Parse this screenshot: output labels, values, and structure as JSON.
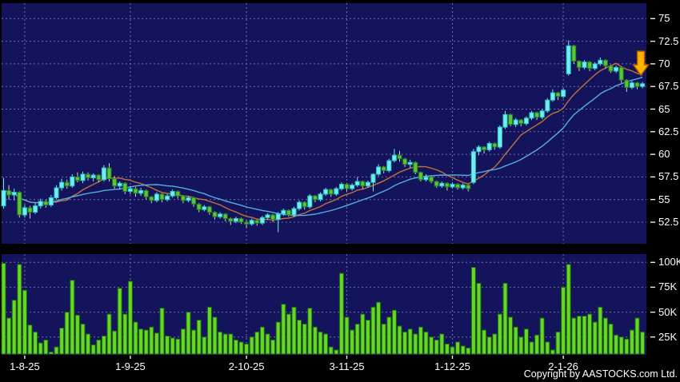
{
  "copyright": "Copyright by AASTOCKS.com Ltd.",
  "chart_data": {
    "type": "candlestick",
    "title": "",
    "subtitle": "",
    "legend_position": "none",
    "grid": true,
    "panes": [
      "price",
      "volume"
    ],
    "x_axis": {
      "ticks": [
        {
          "label": "1-8-25",
          "index": 4
        },
        {
          "label": "1-9-25",
          "index": 24
        },
        {
          "label": "2-10-25",
          "index": 46
        },
        {
          "label": "3-11-25",
          "index": 65
        },
        {
          "label": "1-12-25",
          "index": 85
        },
        {
          "label": "2-1-26",
          "index": 106
        }
      ]
    },
    "price_axis": {
      "labels": [
        "75",
        "72.5",
        "70",
        "67.5",
        "65",
        "62.5",
        "60",
        "57.5",
        "55",
        "52.5"
      ],
      "values": [
        75,
        72.5,
        70,
        67.5,
        65,
        62.5,
        60,
        57.5,
        55,
        52.5
      ],
      "visible_range": [
        50.1,
        76.7
      ]
    },
    "volume_axis": {
      "labels": [
        "100K",
        "75K",
        "50K",
        "25K"
      ],
      "values": [
        100,
        75,
        50,
        25
      ],
      "unit": "K",
      "visible_range": [
        0,
        105
      ]
    },
    "overlays": [
      {
        "name": "ma-fast",
        "type": "sma",
        "period": 10,
        "color": "#c2713b"
      },
      {
        "name": "ma-slow",
        "type": "sma",
        "period": 20,
        "color": "#55aee0"
      }
    ],
    "annotation": {
      "type": "down-arrow",
      "color": "#ffb400",
      "stroke": "#b05f00",
      "index": 121,
      "price": 71.4
    },
    "colors": {
      "background": "#14145c",
      "grid": "#8181a8",
      "up_fill": "#6ef0f0",
      "up_stroke": "#2fc7c7",
      "up_wick": "#79e8e8",
      "down_fill": "#57c63a",
      "down_stroke": "#267a14",
      "down_wick": "#cfcfcf",
      "volume_fill": "#66d725",
      "volume_stroke": "#1c6410",
      "text": "#ffffff"
    },
    "candles_format": [
      "open",
      "high",
      "low",
      "close",
      "volume_k"
    ],
    "candles": [
      [
        54.3,
        57.4,
        54.0,
        56.0,
        99
      ],
      [
        56.0,
        56.6,
        55.0,
        55.5,
        44
      ],
      [
        55.5,
        56.2,
        54.9,
        55.8,
        62
      ],
      [
        55.8,
        55.9,
        53.0,
        53.3,
        98
      ],
      [
        53.3,
        54.4,
        53.0,
        54.1,
        72
      ],
      [
        54.1,
        54.3,
        52.9,
        53.6,
        37
      ],
      [
        53.6,
        54.6,
        53.4,
        54.3,
        30
      ],
      [
        54.3,
        55.1,
        54.0,
        54.8,
        19
      ],
      [
        54.8,
        55.0,
        54.1,
        54.4,
        22
      ],
      [
        54.4,
        55.5,
        54.2,
        55.2,
        10
      ],
      [
        55.2,
        56.6,
        55.0,
        56.3,
        15
      ],
      [
        56.3,
        57.3,
        56.0,
        56.9,
        34
      ],
      [
        56.9,
        57.2,
        56.2,
        56.5,
        50
      ],
      [
        56.5,
        57.8,
        56.3,
        57.5,
        82
      ],
      [
        57.5,
        58.0,
        56.9,
        57.1,
        47
      ],
      [
        57.1,
        58.1,
        56.8,
        57.8,
        38
      ],
      [
        57.8,
        58.0,
        57.1,
        57.4,
        28
      ],
      [
        57.4,
        57.9,
        57.0,
        57.7,
        17
      ],
      [
        57.7,
        57.8,
        56.9,
        57.2,
        22
      ],
      [
        57.2,
        58.8,
        57.0,
        58.5,
        26
      ],
      [
        58.5,
        59.0,
        57.0,
        57.3,
        48
      ],
      [
        57.3,
        57.6,
        56.2,
        56.5,
        31
      ],
      [
        56.5,
        57.0,
        56.1,
        56.8,
        74
      ],
      [
        56.8,
        56.9,
        55.6,
        55.9,
        48
      ],
      [
        55.9,
        56.5,
        55.6,
        56.2,
        81
      ],
      [
        56.2,
        56.4,
        55.3,
        55.7,
        40
      ],
      [
        55.7,
        56.3,
        55.4,
        56.0,
        33
      ],
      [
        56.0,
        56.1,
        55.0,
        55.3,
        32
      ],
      [
        55.3,
        55.4,
        54.6,
        54.9,
        35
      ],
      [
        54.9,
        55.8,
        54.7,
        55.6,
        29
      ],
      [
        55.6,
        55.7,
        54.7,
        55.0,
        54
      ],
      [
        55.0,
        55.6,
        54.8,
        55.4,
        26
      ],
      [
        55.4,
        56.1,
        55.2,
        55.9,
        24
      ],
      [
        55.9,
        56.0,
        55.1,
        55.4,
        23
      ],
      [
        55.4,
        55.5,
        54.6,
        54.9,
        33
      ],
      [
        54.9,
        55.4,
        54.7,
        55.2,
        50
      ],
      [
        55.2,
        55.3,
        54.2,
        54.5,
        32
      ],
      [
        54.5,
        54.6,
        53.6,
        53.9,
        42
      ],
      [
        53.9,
        54.4,
        53.7,
        54.2,
        25
      ],
      [
        54.2,
        54.3,
        53.3,
        53.6,
        55
      ],
      [
        53.6,
        53.7,
        52.8,
        53.1,
        45
      ],
      [
        53.1,
        53.6,
        52.9,
        53.4,
        30
      ],
      [
        53.4,
        53.5,
        52.6,
        52.9,
        28
      ],
      [
        52.9,
        53.0,
        52.2,
        52.6,
        28
      ],
      [
        52.6,
        53.1,
        52.4,
        52.9,
        22
      ],
      [
        52.9,
        53.0,
        52.3,
        52.5,
        20
      ],
      [
        52.5,
        52.7,
        51.9,
        52.3,
        18
      ],
      [
        52.3,
        52.9,
        52.1,
        52.7,
        25
      ],
      [
        52.7,
        52.8,
        52.1,
        52.4,
        30
      ],
      [
        52.4,
        53.2,
        52.2,
        53.0,
        35
      ],
      [
        53.0,
        53.5,
        52.8,
        53.3,
        28
      ],
      [
        53.3,
        53.4,
        52.5,
        52.8,
        22
      ],
      [
        52.8,
        53.6,
        51.4,
        53.4,
        40
      ],
      [
        53.4,
        54.0,
        53.2,
        53.8,
        58
      ],
      [
        53.8,
        53.9,
        53.1,
        53.3,
        48
      ],
      [
        53.3,
        54.2,
        53.1,
        54.0,
        55
      ],
      [
        54.0,
        54.9,
        53.8,
        54.7,
        42
      ],
      [
        54.7,
        54.8,
        53.9,
        54.2,
        38
      ],
      [
        54.2,
        55.6,
        54.0,
        55.4,
        54
      ],
      [
        55.4,
        55.5,
        54.7,
        55.0,
        35
      ],
      [
        55.0,
        55.8,
        54.8,
        55.6,
        30
      ],
      [
        55.6,
        56.3,
        55.4,
        56.1,
        28
      ],
      [
        56.1,
        56.2,
        55.3,
        55.6,
        15
      ],
      [
        55.6,
        56.4,
        55.4,
        56.2,
        12
      ],
      [
        56.2,
        56.9,
        56.0,
        56.7,
        89
      ],
      [
        56.7,
        56.8,
        55.9,
        56.2,
        45
      ],
      [
        56.2,
        56.8,
        56.0,
        56.6,
        32
      ],
      [
        56.6,
        57.5,
        56.4,
        57.0,
        38
      ],
      [
        57.0,
        57.1,
        56.2,
        56.5,
        48
      ],
      [
        56.5,
        57.1,
        56.3,
        56.9,
        42
      ],
      [
        56.9,
        57.9,
        55.9,
        57.8,
        55
      ],
      [
        57.8,
        58.9,
        57.6,
        58.6,
        60
      ],
      [
        58.6,
        58.7,
        57.9,
        58.2,
        38
      ],
      [
        58.2,
        59.5,
        58.0,
        59.3,
        45
      ],
      [
        59.3,
        60.6,
        59.1,
        59.9,
        52
      ],
      [
        59.9,
        60.4,
        59.2,
        59.5,
        36
      ],
      [
        59.5,
        59.6,
        58.6,
        58.9,
        30
      ],
      [
        58.9,
        59.4,
        58.5,
        59.1,
        33
      ],
      [
        59.1,
        59.2,
        57.8,
        58.0,
        28
      ],
      [
        58.0,
        58.1,
        57.0,
        57.2,
        35
      ],
      [
        57.2,
        57.8,
        57.0,
        57.5,
        30
      ],
      [
        57.5,
        57.6,
        56.8,
        57.0,
        25
      ],
      [
        57.0,
        57.1,
        56.3,
        56.5,
        22
      ],
      [
        56.5,
        57.0,
        56.3,
        56.8,
        28
      ],
      [
        56.8,
        56.9,
        56.0,
        56.4,
        18
      ],
      [
        56.4,
        56.9,
        56.2,
        56.7,
        15
      ],
      [
        56.7,
        56.8,
        56.1,
        56.3,
        20
      ],
      [
        56.3,
        56.8,
        56.1,
        56.6,
        16
      ],
      [
        56.6,
        56.7,
        55.9,
        56.2,
        14
      ],
      [
        56.9,
        60.6,
        56.7,
        60.3,
        95
      ],
      [
        60.3,
        61.0,
        59.9,
        60.8,
        79
      ],
      [
        60.8,
        60.9,
        60.1,
        60.5,
        32
      ],
      [
        60.5,
        61.4,
        60.3,
        61.2,
        25
      ],
      [
        61.2,
        61.3,
        60.5,
        60.8,
        28
      ],
      [
        60.8,
        63.2,
        60.6,
        63.0,
        48
      ],
      [
        63.0,
        64.8,
        62.8,
        64.4,
        79
      ],
      [
        64.4,
        64.5,
        63.1,
        63.3,
        45
      ],
      [
        63.3,
        64.0,
        63.0,
        63.8,
        35
      ],
      [
        63.8,
        63.9,
        63.1,
        63.4,
        25
      ],
      [
        63.4,
        64.2,
        63.2,
        64.0,
        33
      ],
      [
        64.0,
        64.8,
        63.8,
        64.6,
        20
      ],
      [
        64.6,
        64.7,
        63.8,
        64.1,
        27
      ],
      [
        64.1,
        65.0,
        63.9,
        64.8,
        44
      ],
      [
        64.8,
        66.2,
        64.6,
        66.0,
        20
      ],
      [
        66.0,
        67.2,
        65.8,
        66.8,
        12
      ],
      [
        66.8,
        66.9,
        66.0,
        66.4,
        30
      ],
      [
        66.4,
        67.3,
        66.2,
        67.1,
        75
      ],
      [
        68.9,
        72.6,
        68.7,
        72.0,
        98
      ],
      [
        72.0,
        72.1,
        70.0,
        70.3,
        44
      ],
      [
        70.3,
        70.4,
        69.2,
        69.6,
        46
      ],
      [
        69.6,
        70.4,
        69.4,
        70.2,
        46
      ],
      [
        70.2,
        70.3,
        69.2,
        69.5,
        48
      ],
      [
        69.5,
        70.2,
        69.3,
        70.0,
        40
      ],
      [
        70.0,
        70.7,
        69.8,
        70.4,
        55
      ],
      [
        70.4,
        70.5,
        69.5,
        69.8,
        44
      ],
      [
        69.8,
        69.9,
        69.0,
        69.2,
        38
      ],
      [
        69.2,
        69.8,
        69.0,
        69.6,
        27
      ],
      [
        69.6,
        69.7,
        67.9,
        68.2,
        25
      ],
      [
        68.2,
        68.3,
        66.9,
        67.4,
        23
      ],
      [
        67.4,
        68.1,
        67.2,
        67.9,
        32
      ],
      [
        67.9,
        68.0,
        67.2,
        67.5,
        44
      ],
      [
        67.5,
        68.0,
        67.3,
        67.8,
        30
      ]
    ]
  }
}
